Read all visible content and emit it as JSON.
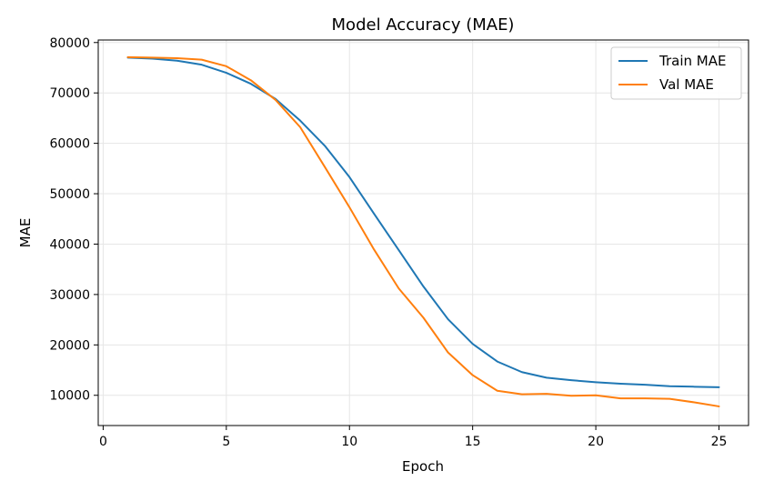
{
  "chart_data": {
    "type": "line",
    "title": "Model Accuracy (MAE)",
    "xlabel": "Epoch",
    "ylabel": "MAE",
    "xlim": [
      -0.2,
      26.2
    ],
    "ylim": [
      4000,
      80500
    ],
    "xticks": [
      0,
      5,
      10,
      15,
      20,
      25
    ],
    "yticks": [
      10000,
      20000,
      30000,
      40000,
      50000,
      60000,
      70000,
      80000
    ],
    "grid": true,
    "legend": "top-right",
    "x": [
      1,
      2,
      3,
      4,
      5,
      6,
      7,
      8,
      9,
      10,
      11,
      12,
      13,
      14,
      15,
      16,
      17,
      18,
      19,
      20,
      21,
      22,
      23,
      24,
      25
    ],
    "series": [
      {
        "name": "Train MAE",
        "color": "#1f77b4",
        "values": [
          77000,
          76800,
          76400,
          75600,
          74000,
          71800,
          68800,
          64500,
          59500,
          53300,
          46000,
          38800,
          31600,
          25100,
          20200,
          16700,
          14600,
          13500,
          13000,
          12600,
          12300,
          12100,
          11800,
          11700,
          11600
        ]
      },
      {
        "name": "Val MAE",
        "color": "#ff7f0e",
        "values": [
          77100,
          77000,
          76900,
          76600,
          75300,
          72500,
          68600,
          63200,
          55300,
          47300,
          38900,
          31200,
          25400,
          18500,
          14000,
          10900,
          10200,
          10300,
          9900,
          10000,
          9400,
          9400,
          9300,
          8600,
          7800
        ]
      }
    ]
  }
}
